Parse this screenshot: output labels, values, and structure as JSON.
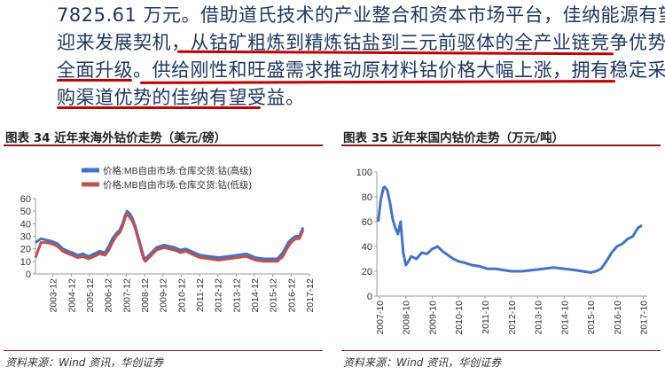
{
  "paragraph": {
    "line1": "7825.61 万元。借助道氏技术的产业整合和资本市场平台，佳纳能源有望",
    "line2_plain": "迎来发展契机，",
    "line2_underlined": "从钴矿粗炼到精炼钴盐到三元前驱体的全产业链竞争优势",
    "line3_underlined_a": "全面升级。",
    "line3_underlined_b": "供给刚性和旺盛需求推动原材料钴价格大幅上涨，拥有稳定采",
    "line4_underlined": "购渠道优势的佳纳有望受益",
    "line4_plain": "。"
  },
  "figures": [
    {
      "title": "图表 34    近年来海外钴价走势（美元/磅）",
      "source": "资料来源：Wind 资讯，华创证券"
    },
    {
      "title": "图表 35    近年来国内钴价走势（万元/吨）",
      "source": "资料来源：Wind 资讯，华创证券"
    }
  ],
  "colors": {
    "underline": "#c00000",
    "series_blue": "#4472c4",
    "series_red": "#c0504d",
    "rule": "#8b1a1a"
  },
  "chart_data": [
    {
      "type": "line",
      "series": [
        {
          "name": "价格:MB自由市场:仓库交货:钴(高级)",
          "color": "#4472c4",
          "x": [
            2003.0,
            2003.3,
            2003.6,
            2003.9,
            2004.2,
            2004.5,
            2004.8,
            2005.0,
            2005.3,
            2005.6,
            2005.9,
            2006.2,
            2006.5,
            2006.8,
            2007.0,
            2007.2,
            2007.4,
            2007.6,
            2007.75,
            2007.9,
            2008.0,
            2008.15,
            2008.3,
            2008.45,
            2008.6,
            2008.75,
            2008.9,
            2009.0,
            2009.2,
            2009.4,
            2009.6,
            2009.8,
            2010.0,
            2010.3,
            2010.6,
            2010.9,
            2011.2,
            2011.5,
            2011.8,
            2012.0,
            2012.5,
            2013.0,
            2013.5,
            2014.0,
            2014.5,
            2015.0,
            2015.5,
            2015.9,
            2016.2,
            2016.5,
            2016.8,
            2017.0,
            2017.2,
            2017.4,
            2017.6
          ],
          "values": [
            25,
            28,
            27,
            26,
            24,
            20,
            18,
            17,
            15,
            16,
            14,
            16,
            18,
            17,
            22,
            28,
            32,
            35,
            40,
            47,
            50,
            48,
            44,
            38,
            30,
            22,
            14,
            12,
            15,
            18,
            21,
            22,
            23,
            22,
            21,
            19,
            20,
            18,
            16,
            15,
            14,
            13,
            14,
            15,
            16,
            13,
            12,
            12,
            12,
            17,
            25,
            28,
            30,
            30,
            37
          ]
        },
        {
          "name": "价格:MB自由市场:仓库交货:钴(低级)",
          "color": "#c0504d",
          "x": [
            2003.0,
            2003.3,
            2003.6,
            2003.9,
            2004.2,
            2004.5,
            2004.8,
            2005.0,
            2005.3,
            2005.6,
            2005.9,
            2006.2,
            2006.5,
            2006.8,
            2007.0,
            2007.2,
            2007.4,
            2007.6,
            2007.75,
            2007.9,
            2008.0,
            2008.15,
            2008.3,
            2008.45,
            2008.6,
            2008.75,
            2008.9,
            2009.0,
            2009.2,
            2009.4,
            2009.6,
            2009.8,
            2010.0,
            2010.3,
            2010.6,
            2010.9,
            2011.2,
            2011.5,
            2011.8,
            2012.0,
            2012.5,
            2013.0,
            2013.5,
            2014.0,
            2014.5,
            2015.0,
            2015.5,
            2015.9,
            2016.2,
            2016.5,
            2016.8,
            2017.0,
            2017.2,
            2017.4,
            2017.6
          ],
          "values": [
            13,
            25,
            25,
            24,
            22,
            18,
            16,
            15,
            13,
            14,
            12,
            14,
            16,
            15,
            19,
            25,
            30,
            33,
            38,
            45,
            48,
            45,
            42,
            36,
            28,
            20,
            12,
            10,
            13,
            16,
            19,
            20,
            21,
            20,
            19,
            17,
            18,
            16,
            14,
            13,
            12,
            11,
            12,
            13,
            14,
            11,
            10,
            10,
            10,
            14,
            22,
            26,
            28,
            28,
            35
          ]
        }
      ],
      "xticks": [
        "2003-12",
        "2004-12",
        "2005-12",
        "2006-12",
        "2007-12",
        "2008-12",
        "2009-12",
        "2010-12",
        "2011-12",
        "2012-12",
        "2013-12",
        "2014-12",
        "2015-12",
        "2016-12",
        "2017-12"
      ],
      "yticks": [
        0,
        10,
        20,
        30,
        40,
        50,
        60
      ],
      "ylim": [
        0,
        60
      ],
      "legend_position": "top-left",
      "grid": false
    },
    {
      "type": "line",
      "series": [
        {
          "color": "#4472c4",
          "x": [
            2007.75,
            2007.85,
            2007.95,
            2008.0,
            2008.1,
            2008.2,
            2008.3,
            2008.4,
            2008.5,
            2008.6,
            2008.7,
            2008.8,
            2008.9,
            2009.0,
            2009.2,
            2009.4,
            2009.6,
            2009.8,
            2010.0,
            2010.2,
            2010.4,
            2010.6,
            2010.8,
            2011.0,
            2011.3,
            2011.6,
            2011.9,
            2012.2,
            2012.5,
            2012.8,
            2013.2,
            2013.6,
            2014.0,
            2014.4,
            2014.8,
            2015.2,
            2015.5,
            2015.8,
            2016.0,
            2016.2,
            2016.4,
            2016.6,
            2016.8,
            2017.0,
            2017.2,
            2017.4,
            2017.6,
            2017.75
          ],
          "values": [
            60,
            78,
            87,
            88,
            85,
            75,
            62,
            55,
            50,
            60,
            35,
            25,
            28,
            32,
            30,
            35,
            34,
            38,
            40,
            36,
            33,
            30,
            28,
            27,
            25,
            24,
            22,
            22,
            21,
            20,
            20,
            21,
            22,
            23,
            22,
            21,
            20,
            19,
            20,
            22,
            28,
            35,
            40,
            42,
            46,
            48,
            55,
            57
          ]
        }
      ],
      "xticks": [
        "2007-10",
        "2008-10",
        "2009-10",
        "2010-10",
        "2011-10",
        "2012-10",
        "2013-10",
        "2014-10",
        "2015-10",
        "2016-10",
        "2017-10"
      ],
      "yticks": [
        0,
        20,
        40,
        60,
        80,
        100
      ],
      "ylim": [
        0,
        100
      ],
      "grid": false
    }
  ]
}
